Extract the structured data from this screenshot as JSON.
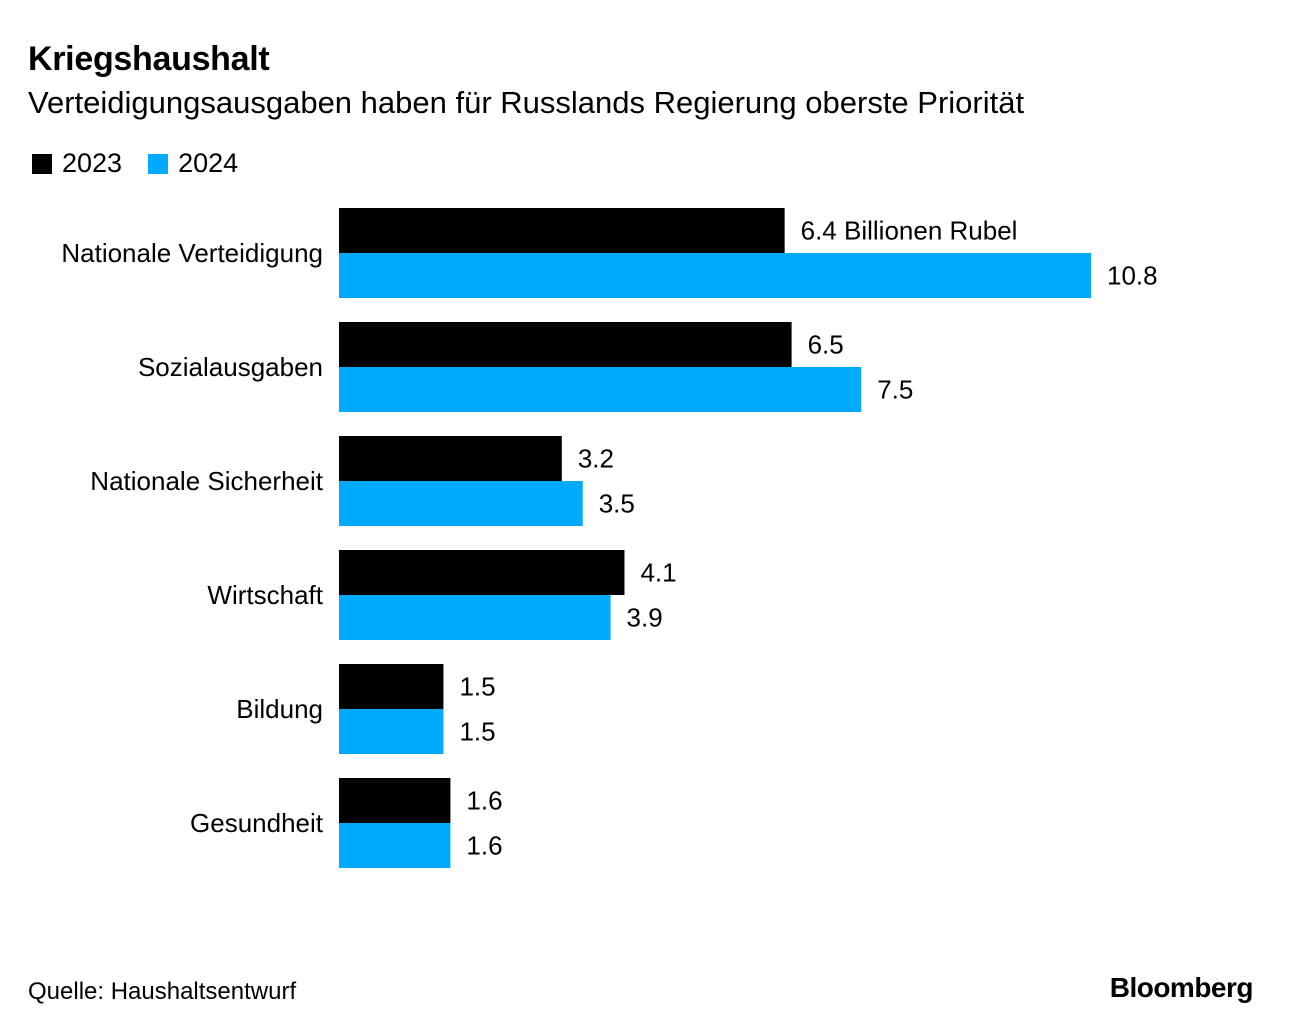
{
  "header": {
    "title": "Kriegshaushalt",
    "subtitle": "Verteidigungsausgaben haben für Russlands Regierung oberste Priorität"
  },
  "legend": [
    {
      "label": "2023",
      "color": "#000000"
    },
    {
      "label": "2024",
      "color": "#00aaff"
    }
  ],
  "chart_data": {
    "type": "bar",
    "orientation": "horizontal",
    "title": "Kriegshaushalt",
    "subtitle": "Verteidigungsausgaben haben für Russlands Regierung oberste Priorität",
    "categories": [
      "Nationale Verteidigung",
      "Sozialausgaben",
      "Nationale Sicherheit",
      "Wirtschaft",
      "Bildung",
      "Gesundheit"
    ],
    "series": [
      {
        "name": "2023",
        "color": "#000000",
        "values": [
          6.4,
          6.5,
          3.2,
          4.1,
          1.5,
          1.6
        ]
      },
      {
        "name": "2024",
        "color": "#00aaff",
        "values": [
          10.8,
          7.5,
          3.5,
          3.9,
          1.5,
          1.6
        ]
      }
    ],
    "value_unit_label": "Billionen Rubel",
    "first_label_suffix": " Billionen Rubel",
    "xlabel": "",
    "ylabel": "",
    "xlim": [
      0,
      10.8
    ],
    "grid": false,
    "legend_position": "top-left"
  },
  "footer": {
    "source": "Quelle: Haushaltsentwurf",
    "brand": "Bloomberg"
  }
}
